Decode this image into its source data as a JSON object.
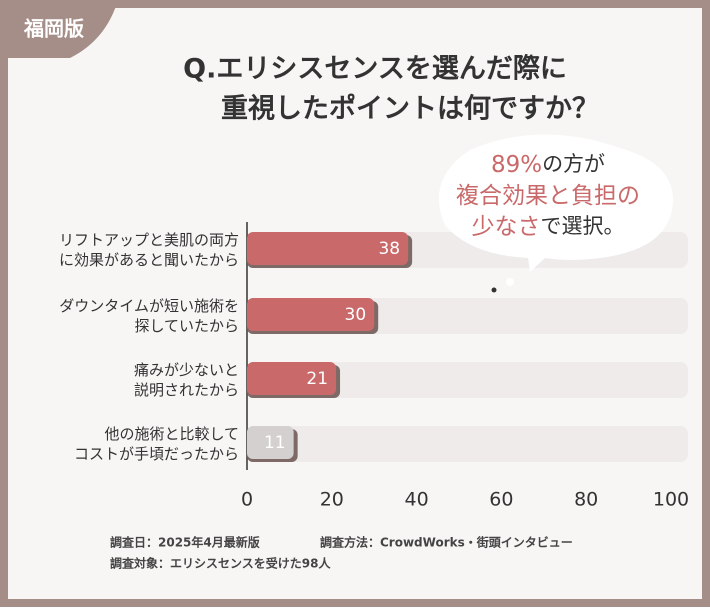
{
  "badge": "福岡版",
  "chart_data": {
    "type": "bar",
    "orientation": "horizontal",
    "title": [
      "Q.エリシスセンスを選んだ際に",
      "重視したポイントは何ですか？"
    ],
    "categories": [
      "リフトアップと美肌の両方\nに効果があると聞いたから",
      "ダウンタイムが短い施術を\n探していたから",
      "痛みが少ないと\n説明されたから",
      "他の施術と比較して\nコストが手頃だったから"
    ],
    "values": [
      38,
      30,
      21,
      11
    ],
    "colors": [
      "#c9696a",
      "#c9696a",
      "#c9696a",
      "#d3d0cf"
    ],
    "xlim": [
      0,
      100
    ],
    "xticks": [
      0,
      20,
      40,
      60,
      80,
      100
    ],
    "annotation": [
      [
        "89%",
        "の方が"
      ],
      [
        "複合効果と負担の"
      ],
      [
        "少なさ",
        "で選択。"
      ]
    ],
    "notes": [
      "調査日：2025年4月最新版",
      "調査方法：CrowdWorks・街頭インタビュー",
      "調査対象：エリシスセンスを受けた98人"
    ]
  }
}
